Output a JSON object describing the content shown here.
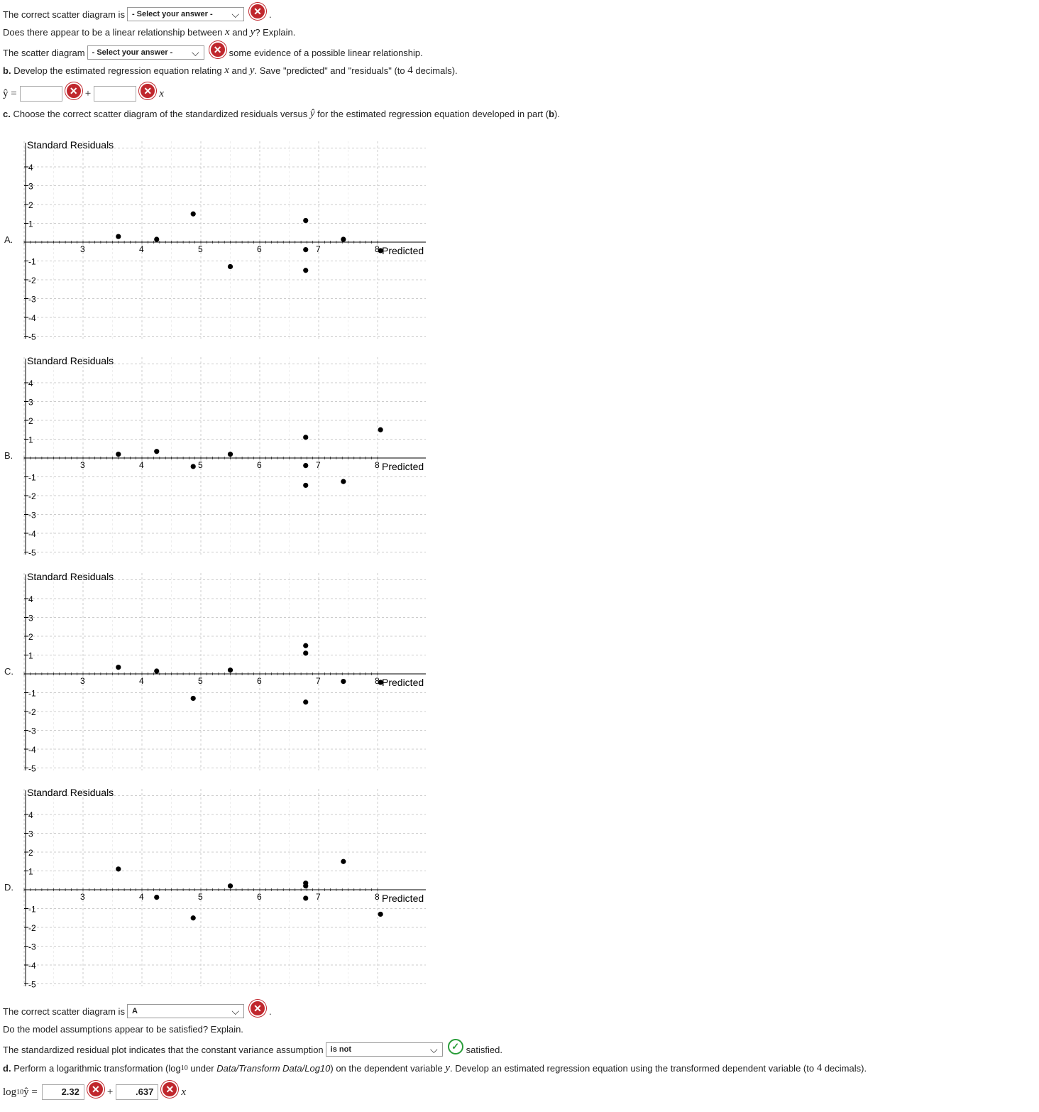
{
  "partA": {
    "scatter_prefix": "The correct scatter diagram is",
    "scatter_select": "- Select your answer -",
    "question": "Does there appear to be a linear relationship between",
    "var_x": "x",
    "and": "and",
    "var_y": "y",
    "question_end": "? Explain.",
    "sd_prefix": "The scatter diagram",
    "sd_select": "- Select your answer -",
    "sd_suffix": "some evidence of a possible linear relationship."
  },
  "partB": {
    "label": "b.",
    "text1": "Develop the estimated regression equation relating",
    "text2": ". Save \"predicted\" and \"residuals\" (to",
    "decimals": "4",
    "text3": "decimals).",
    "yhat": "ŷ =",
    "plus": "+",
    "x": "x",
    "b0_value": "",
    "b1_value": ""
  },
  "partC": {
    "label": "c.",
    "text": "Choose the correct scatter diagram of the standardized residuals versus",
    "yhat": "ŷ",
    "text2": "for the estimated regression equation developed in part (",
    "bold_b": "b",
    "text3": ").",
    "answer_prefix": "The correct scatter diagram is",
    "answer_select": "A",
    "assump_q": "Do the model assumptions appear to be satisfied? Explain.",
    "assump_prefix": "The standardized residual plot indicates that the constant variance assumption",
    "assump_select": "is not",
    "assump_suffix": "satisfied."
  },
  "partD": {
    "label": "d.",
    "text1": "Perform a logarithmic transformation (log",
    "sub": "10",
    "text2": "under",
    "italic": "Data/Transform Data/Log10",
    "text3": ") on the dependent variable",
    "text4": ". Develop an estimated regression equation using the transformed dependent variable (to",
    "decimals": "4",
    "text5": "decimals).",
    "log_lhs": "log",
    "log_sub": "10",
    "log_yhat": "ŷ =",
    "b0_value": "2.32",
    "plus": "+",
    "b1_value": ".637",
    "x": "x"
  },
  "chart_data": [
    {
      "option": "A.",
      "type": "scatter",
      "ylabel": "Standard Residuals",
      "xlabel": "Predicted y",
      "xlim": [
        2,
        8
      ],
      "ylim": [
        -5,
        5
      ],
      "x_ticks": [
        "3",
        "4",
        "5",
        "6",
        "7",
        "8"
      ],
      "y_ticks": [
        "4",
        "3",
        "2",
        "1",
        "-1",
        "-2",
        "-3",
        "-4",
        "-5"
      ],
      "points": [
        [
          3.6,
          0.3
        ],
        [
          4.25,
          0.15
        ],
        [
          4.87,
          1.5
        ],
        [
          5.5,
          -1.3
        ],
        [
          6.78,
          1.15
        ],
        [
          6.78,
          -0.4
        ],
        [
          6.78,
          -1.5
        ],
        [
          7.42,
          0.15
        ],
        [
          8.05,
          -0.45
        ]
      ]
    },
    {
      "option": "B.",
      "type": "scatter",
      "ylabel": "Standard Residuals",
      "xlabel": "Predicted y",
      "xlim": [
        2,
        8
      ],
      "ylim": [
        -5,
        5
      ],
      "x_ticks": [
        "3",
        "4",
        "5",
        "6",
        "7",
        "8"
      ],
      "y_ticks": [
        "4",
        "3",
        "2",
        "1",
        "-1",
        "-2",
        "-3",
        "-4",
        "-5"
      ],
      "points": [
        [
          3.6,
          0.2
        ],
        [
          4.25,
          0.35
        ],
        [
          4.87,
          -0.45
        ],
        [
          5.5,
          0.2
        ],
        [
          6.78,
          1.1
        ],
        [
          6.78,
          -0.4
        ],
        [
          6.78,
          -1.45
        ],
        [
          7.42,
          -1.25
        ],
        [
          8.05,
          1.5
        ]
      ]
    },
    {
      "option": "C.",
      "type": "scatter",
      "ylabel": "Standard Residuals",
      "xlabel": "Predicted y",
      "xlim": [
        2,
        8
      ],
      "ylim": [
        -5,
        5
      ],
      "x_ticks": [
        "3",
        "4",
        "5",
        "6",
        "7",
        "8"
      ],
      "y_ticks": [
        "4",
        "3",
        "2",
        "1",
        "-1",
        "-2",
        "-3",
        "-4",
        "-5"
      ],
      "points": [
        [
          3.6,
          0.35
        ],
        [
          4.25,
          0.15
        ],
        [
          4.87,
          -1.3
        ],
        [
          5.5,
          0.2
        ],
        [
          6.78,
          1.5
        ],
        [
          6.78,
          1.1
        ],
        [
          6.78,
          -1.5
        ],
        [
          7.42,
          -0.4
        ],
        [
          8.05,
          -0.45
        ]
      ]
    },
    {
      "option": "D.",
      "type": "scatter",
      "ylabel": "Standard Residuals",
      "xlabel": "Predicted y",
      "xlim": [
        2,
        8
      ],
      "ylim": [
        -5,
        5
      ],
      "x_ticks": [
        "3",
        "4",
        "5",
        "6",
        "7",
        "8"
      ],
      "y_ticks": [
        "4",
        "3",
        "2",
        "1",
        "-1",
        "-2",
        "-3",
        "-4",
        "-5"
      ],
      "points": [
        [
          3.6,
          1.1
        ],
        [
          4.25,
          -0.4
        ],
        [
          4.87,
          -1.5
        ],
        [
          5.5,
          0.2
        ],
        [
          6.78,
          0.35
        ],
        [
          6.78,
          0.2
        ],
        [
          6.78,
          -0.45
        ],
        [
          7.42,
          1.5
        ],
        [
          8.05,
          -1.3
        ]
      ]
    }
  ],
  "colors": {
    "error": "#c0272d",
    "ok": "#2a9d3a"
  },
  "icons": {
    "error": "x-circle-icon",
    "ok": "check-circle-icon"
  }
}
